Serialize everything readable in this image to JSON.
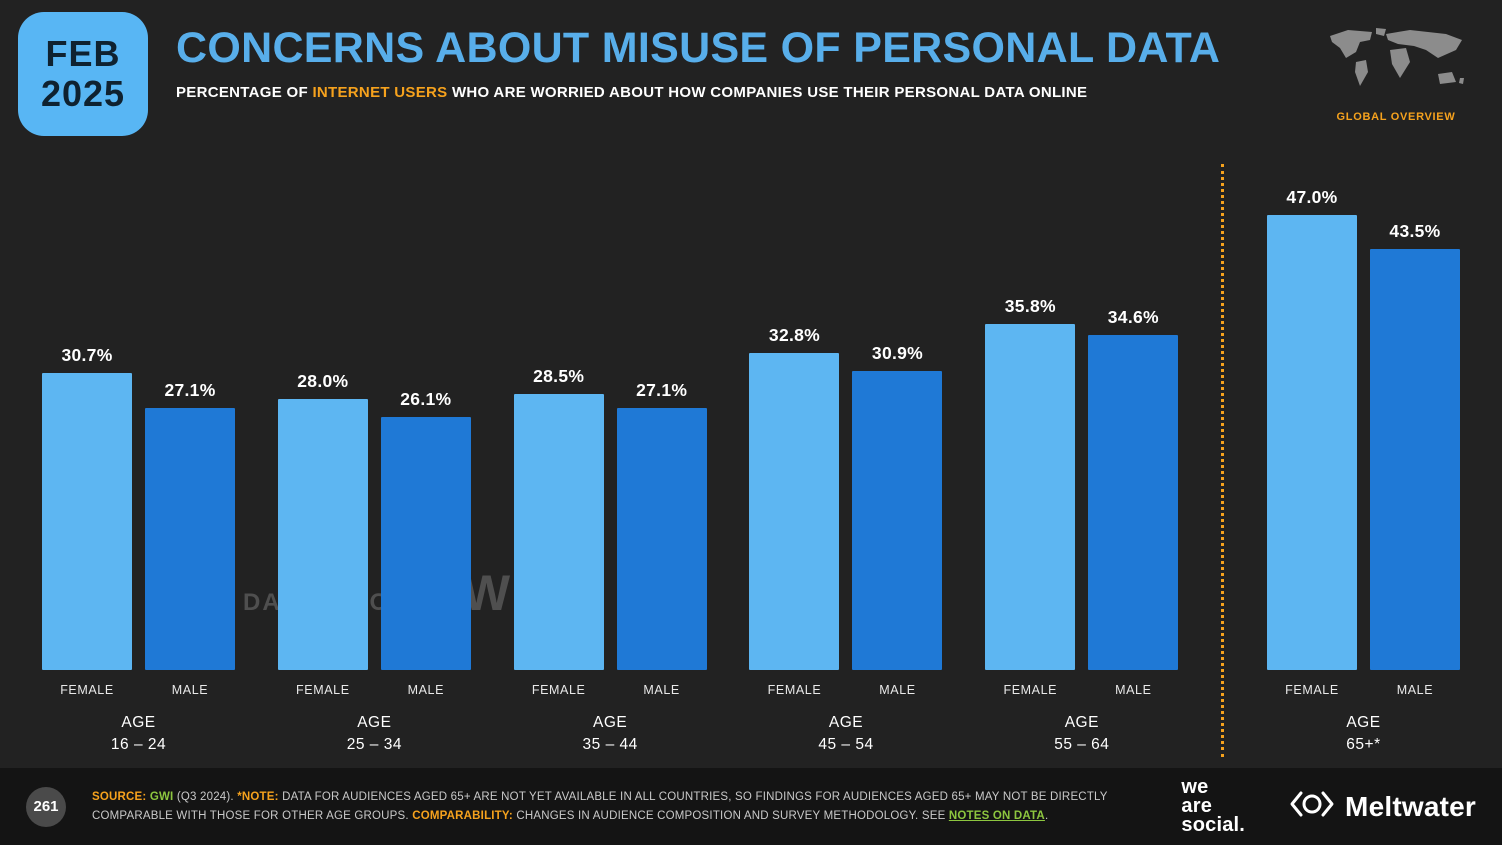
{
  "badge": {
    "month": "FEB",
    "year": "2025"
  },
  "header": {
    "title": "CONCERNS ABOUT MISUSE OF PERSONAL DATA",
    "subtitle_prefix": "PERCENTAGE OF ",
    "subtitle_highlight": "INTERNET USERS",
    "subtitle_suffix": " WHO ARE WORRIED ABOUT HOW COMPANIES USE THEIR PERSONAL DATA ONLINE",
    "overview_label": "GLOBAL OVERVIEW"
  },
  "chart_data": {
    "type": "bar",
    "title": "CONCERNS ABOUT MISUSE OF PERSONAL DATA",
    "group_label_prefix": "AGE",
    "categories": [
      "16 – 24",
      "25 – 34",
      "35 – 44",
      "45 – 54",
      "55 – 64",
      "65+*"
    ],
    "series": [
      {
        "name": "FEMALE",
        "color": "#5db6f2",
        "values": [
          30.7,
          28.0,
          28.5,
          32.8,
          35.8,
          47.0
        ]
      },
      {
        "name": "MALE",
        "color": "#1f79d6",
        "values": [
          27.1,
          26.1,
          27.1,
          30.9,
          34.6,
          43.5
        ]
      }
    ],
    "ylim": [
      0,
      50
    ],
    "value_suffix": "%",
    "grid": false,
    "legend_position": "below-bars",
    "separator_before_index": 5,
    "separator_color": "#f6a21d"
  },
  "watermark": {
    "left": "DATAREPORTAL",
    "right": "GWI."
  },
  "footer": {
    "page": "261",
    "source_label": "SOURCE:",
    "source_link": "GWI",
    "source_rest": " (Q3 2024). ",
    "note_label": "*NOTE:",
    "note_text": " DATA FOR AUDIENCES AGED 65+ ARE NOT YET AVAILABLE IN ALL COUNTRIES, SO FINDINGS FOR AUDIENCES AGED 65+ MAY NOT BE DIRECTLY COMPARABLE WITH THOSE FOR OTHER AGE GROUPS. ",
    "comparability_label": "COMPARABILITY:",
    "comparability_text": " CHANGES IN AUDIENCE COMPOSITION AND SURVEY METHODOLOGY. SEE ",
    "notes_link": "NOTES ON DATA",
    "notes_period": ".",
    "logo_we_are_social": {
      "line1": "we",
      "line2": "are",
      "line3": "social."
    },
    "logo_meltwater": "Meltwater"
  }
}
